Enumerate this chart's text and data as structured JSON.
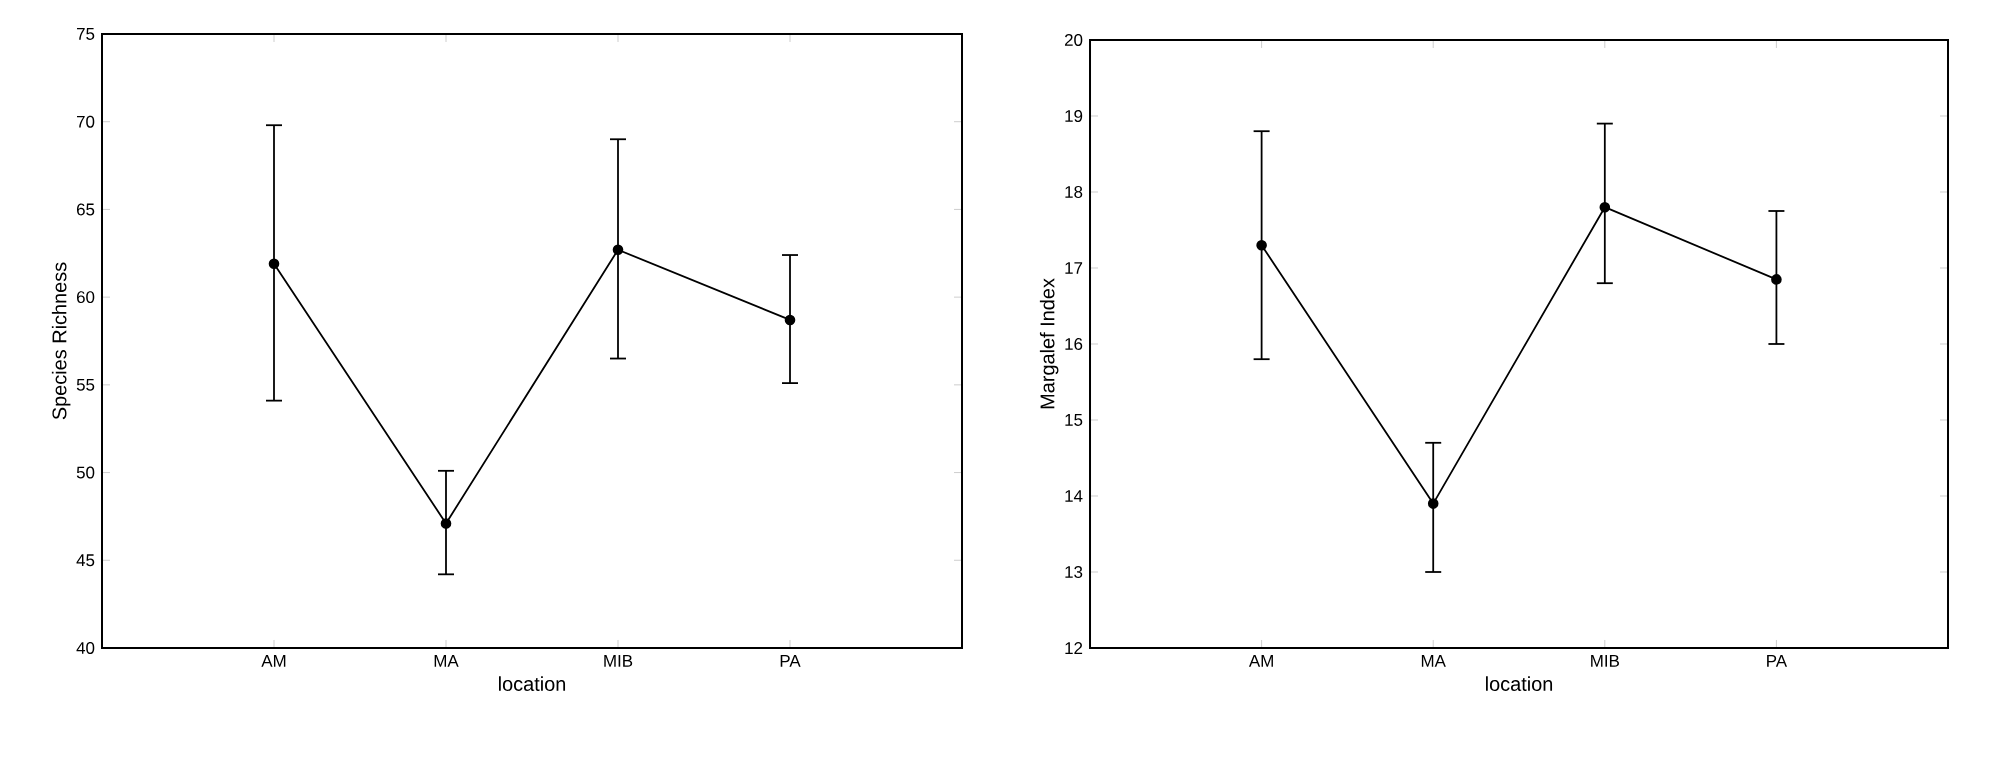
{
  "chart_data": [
    {
      "type": "line",
      "xlabel": "location",
      "ylabel": "Species Richness",
      "categories": [
        "AM",
        "MA",
        "MIB",
        "PA"
      ],
      "values": [
        61.9,
        47.1,
        62.7,
        58.7
      ],
      "errors": [
        [
          54.1,
          69.8
        ],
        [
          44.2,
          50.1
        ],
        [
          56.5,
          69.0
        ],
        [
          55.1,
          62.4
        ]
      ],
      "color": "#000000",
      "ylim": [
        40,
        75
      ],
      "yticks": [
        40,
        45,
        50,
        55,
        60,
        65,
        70,
        75
      ],
      "marker": "circle",
      "line_style": "solid",
      "grid": false
    },
    {
      "type": "line",
      "xlabel": "location",
      "ylabel": "Margalef Index",
      "categories": [
        "AM",
        "MA",
        "MIB",
        "PA"
      ],
      "values": [
        17.3,
        13.9,
        17.8,
        16.85
      ],
      "errors": [
        [
          15.8,
          18.8
        ],
        [
          13.0,
          14.7
        ],
        [
          16.8,
          18.9
        ],
        [
          16.0,
          17.75
        ]
      ],
      "color": "#000000",
      "ylim": [
        12,
        20
      ],
      "yticks": [
        12,
        13,
        14,
        15,
        16,
        17,
        18,
        19,
        20
      ],
      "marker": "circle",
      "line_style": "solid",
      "grid": false
    }
  ]
}
